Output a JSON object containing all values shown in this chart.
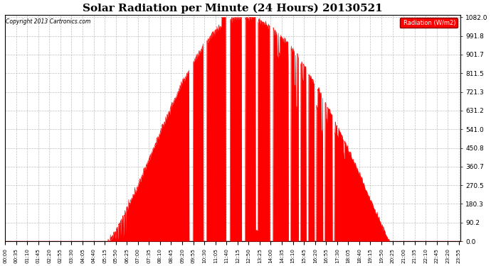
{
  "title": "Solar Radiation per Minute (24 Hours) 20130521",
  "copyright": "Copyright 2013 Cartronics.com",
  "legend_label": "Radiation (W/m2)",
  "ylabel_values": [
    0.0,
    90.2,
    180.3,
    270.5,
    360.7,
    450.8,
    541.0,
    631.2,
    721.3,
    811.5,
    901.7,
    991.8,
    1082.0
  ],
  "ymax": 1082.0,
  "ymin": 0.0,
  "fill_color": "#ff0000",
  "line_color": "#ff0000",
  "background_color": "#ffffff",
  "grid_color": "#b0b0b0",
  "title_fontsize": 11,
  "x_tick_interval": 35,
  "total_minutes": 1440,
  "sunrise_minute": 325,
  "sunset_minute": 1215,
  "peak_minute": 750,
  "peak_value": 1082.0,
  "figwidth": 6.9,
  "figheight": 3.75,
  "dpi": 100
}
